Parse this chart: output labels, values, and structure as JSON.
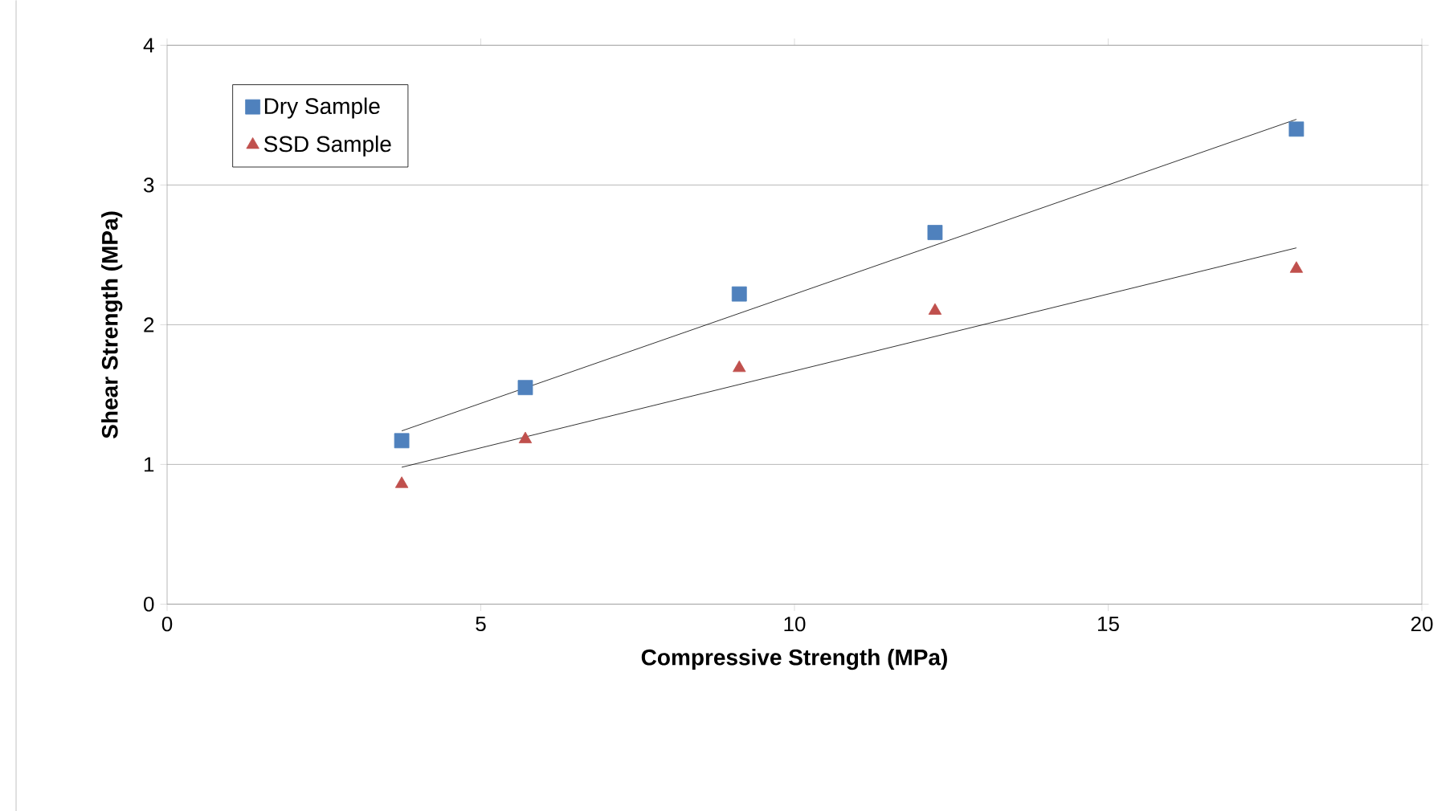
{
  "chart_data": {
    "type": "scatter",
    "xlabel": "Compressive Strength (MPa)",
    "ylabel": "Shear  Strength (MPa)",
    "xlim": [
      0,
      20
    ],
    "ylim": [
      0,
      4
    ],
    "xticks": [
      0,
      5,
      10,
      15,
      20
    ],
    "yticks": [
      0,
      1,
      2,
      3,
      4
    ],
    "grid": "y",
    "legend": "top left",
    "series": [
      {
        "name": "Dry Sample",
        "marker": "square",
        "color": "#4f81bd",
        "x": [
          3.74,
          5.71,
          9.12,
          12.24,
          18.0
        ],
        "values": [
          1.17,
          1.55,
          2.22,
          2.66,
          3.4
        ]
      },
      {
        "name": "SSD Sample",
        "marker": "triangle",
        "color": "#c0504d",
        "x": [
          3.74,
          5.71,
          9.12,
          12.24,
          18.0
        ],
        "values": [
          0.86,
          1.18,
          1.69,
          2.1,
          2.4
        ]
      },
      {
        "type": "line",
        "marker": "none",
        "color": "#000000",
        "x": [
          3.74,
          18.0
        ],
        "values": [
          1.24,
          3.47
        ]
      },
      {
        "type": "line",
        "marker": "none",
        "color": "#000000",
        "x": [
          3.74,
          18.0
        ],
        "values": [
          0.98,
          2.55
        ]
      }
    ]
  }
}
